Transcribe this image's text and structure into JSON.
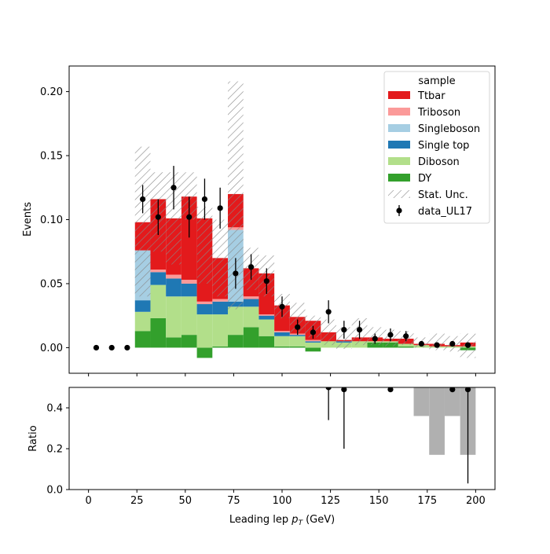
{
  "chart_data": {
    "type": "bar",
    "stacked": true,
    "histogram": true,
    "xlabel": "Leading lep",
    "xlabel_symbol": "p",
    "xlabel_subscript": "T",
    "xlabel_unit": "(GeV)",
    "xlim": [
      -10,
      210
    ],
    "xticks": [
      0,
      25,
      50,
      75,
      100,
      125,
      150,
      175,
      200
    ],
    "xtick_labels": [
      "0",
      "25",
      "50",
      "75",
      "100",
      "125",
      "150",
      "175",
      "200"
    ],
    "main": {
      "ylabel": "Events",
      "ylim": [
        -0.02,
        0.22
      ],
      "yticks": [
        0,
        0.05,
        0.1,
        0.15,
        0.2
      ],
      "ytick_labels": [
        "0.00",
        "0.05",
        "0.10",
        "0.15",
        "0.20"
      ],
      "bin_edges": [
        24,
        32,
        40,
        48,
        56,
        64,
        72,
        80,
        88,
        96,
        104,
        112,
        120,
        128,
        136,
        144,
        152,
        160,
        168,
        176,
        184,
        192,
        200
      ],
      "series": [
        {
          "name": "DY",
          "color": "#33a02c",
          "values": [
            0.013,
            0.023,
            0.008,
            0.01,
            -0.008,
            0.001,
            0.01,
            0.016,
            0.009,
            0.001,
            0.001,
            -0.003,
            0.0,
            0.0,
            0.0,
            0.004,
            0.004,
            0.001,
            0.0,
            0.0,
            0.0,
            -0.002
          ]
        },
        {
          "name": "Diboson",
          "color": "#b2df8a",
          "values": [
            0.015,
            0.026,
            0.032,
            0.03,
            0.026,
            0.025,
            0.022,
            0.016,
            0.013,
            0.008,
            0.008,
            0.004,
            0.005,
            0.004,
            0.005,
            0.001,
            0.001,
            0.002,
            0.002,
            0.001,
            0.001,
            0.001
          ]
        },
        {
          "name": "Single top",
          "color": "#1f78b4",
          "values": [
            0.009,
            0.01,
            0.014,
            0.01,
            0.008,
            0.01,
            0.004,
            0.006,
            0.003,
            0.003,
            0.001,
            0.001,
            0.0,
            0.001,
            0.0,
            0.0,
            0.0,
            0.0,
            0.0,
            0.0,
            0.0,
            0.0
          ]
        },
        {
          "name": "Singleboson",
          "color": "#a6cee3",
          "values": [
            0.039,
            0.0,
            0.0,
            0.0,
            0.0,
            0.0,
            0.056,
            0.0,
            0.0,
            0.0,
            0.0,
            0.0,
            0.0,
            0.0,
            0.0,
            0.0,
            0.0,
            0.0,
            0.0,
            0.0,
            0.0,
            0.0
          ]
        },
        {
          "name": "Triboson",
          "color": "#fb9a99",
          "values": [
            0.0,
            0.002,
            0.003,
            0.003,
            0.002,
            0.002,
            0.002,
            0.002,
            0.001,
            0.001,
            0.001,
            0.001,
            0.0,
            0.0,
            0.0,
            0.0,
            0.0,
            0.0,
            0.0,
            0.0,
            0.0,
            0.0
          ]
        },
        {
          "name": "Ttbar",
          "color": "#e31a1c",
          "values": [
            0.022,
            0.055,
            0.044,
            0.065,
            0.065,
            0.032,
            0.026,
            0.022,
            0.032,
            0.02,
            0.013,
            0.015,
            0.007,
            0.001,
            0.003,
            0.003,
            0.002,
            0.004,
            0.001,
            0.002,
            0.001,
            0.003
          ]
        }
      ],
      "stat_unc": {
        "name": "Stat. Unc.",
        "lo": [
          0.04,
          0.075,
          0.065,
          0.1,
          0.05,
          0.04,
          0.03,
          0.045,
          0.04,
          0.023,
          0.011,
          0.008,
          0.002,
          -0.001,
          0.002,
          0.002,
          0.001,
          0.002,
          0.0,
          -0.002,
          -0.003,
          -0.008
        ],
        "hi": [
          0.157,
          0.137,
          0.137,
          0.137,
          0.11,
          0.1,
          0.208,
          0.078,
          0.072,
          0.042,
          0.035,
          0.025,
          0.022,
          0.016,
          0.023,
          0.016,
          0.014,
          0.013,
          0.008,
          0.011,
          0.009,
          0.011
        ]
      },
      "data": {
        "name": "data_UL17",
        "x": [
          4,
          12,
          20,
          28,
          36,
          44,
          52,
          60,
          68,
          76,
          84,
          92,
          100,
          108,
          116,
          124,
          132,
          140,
          148,
          156,
          164,
          172,
          180,
          188,
          196
        ],
        "y": [
          0.0,
          0.0,
          0.0,
          0.116,
          0.102,
          0.125,
          0.102,
          0.116,
          0.109,
          0.058,
          0.063,
          0.052,
          0.032,
          0.016,
          0.012,
          0.028,
          0.014,
          0.014,
          0.007,
          0.01,
          0.009,
          0.003,
          0.002,
          0.003,
          0.002
        ],
        "err": [
          0.0,
          0.0,
          0.0,
          0.011,
          0.014,
          0.017,
          0.016,
          0.016,
          0.016,
          0.012,
          0.01,
          0.01,
          0.008,
          0.006,
          0.005,
          0.009,
          0.007,
          0.007,
          0.004,
          0.005,
          0.004,
          0.002,
          0.001,
          0.002,
          0.001
        ]
      }
    },
    "ratio": {
      "ylabel": "Ratio",
      "ylim": [
        0.0,
        0.5
      ],
      "yticks": [
        0.0,
        0.2,
        0.4
      ],
      "ytick_labels": [
        "0.0",
        "0.2",
        "0.4"
      ],
      "points": [
        {
          "x": 124,
          "y": 0.5,
          "lo": 0.34,
          "hi": 0.5
        },
        {
          "x": 132,
          "y": 0.49,
          "lo": 0.2,
          "hi": 0.5
        },
        {
          "x": 156,
          "y": 0.49,
          "lo": 0.48,
          "hi": 0.5
        },
        {
          "x": 188,
          "y": 0.49,
          "lo": 0.48,
          "hi": 0.5
        },
        {
          "x": 196,
          "y": 0.49,
          "lo": 0.03,
          "hi": 0.5
        }
      ],
      "unc_bands": [
        {
          "x0": 168,
          "x1": 176,
          "y0": 0.36,
          "y1": 0.5
        },
        {
          "x0": 176,
          "x1": 184,
          "y0": 0.17,
          "y1": 0.5
        },
        {
          "x0": 184,
          "x1": 192,
          "y0": 0.36,
          "y1": 0.5
        },
        {
          "x0": 192,
          "x1": 200,
          "y0": 0.17,
          "y1": 0.5
        }
      ]
    },
    "legend": {
      "title": "sample",
      "placement": "top-right",
      "entries": [
        {
          "label": "Ttbar",
          "color": "#e31a1c",
          "kind": "patch"
        },
        {
          "label": "Triboson",
          "color": "#fb9a99",
          "kind": "patch"
        },
        {
          "label": "Singleboson",
          "color": "#a6cee3",
          "kind": "patch"
        },
        {
          "label": "Single top",
          "color": "#1f78b4",
          "kind": "patch"
        },
        {
          "label": "Diboson",
          "color": "#b2df8a",
          "kind": "patch"
        },
        {
          "label": "DY",
          "color": "#33a02c",
          "kind": "patch"
        },
        {
          "label": "Stat. Unc.",
          "color": "#888888",
          "kind": "hatch"
        },
        {
          "label": "data_UL17",
          "color": "#000000",
          "kind": "marker"
        }
      ]
    }
  }
}
